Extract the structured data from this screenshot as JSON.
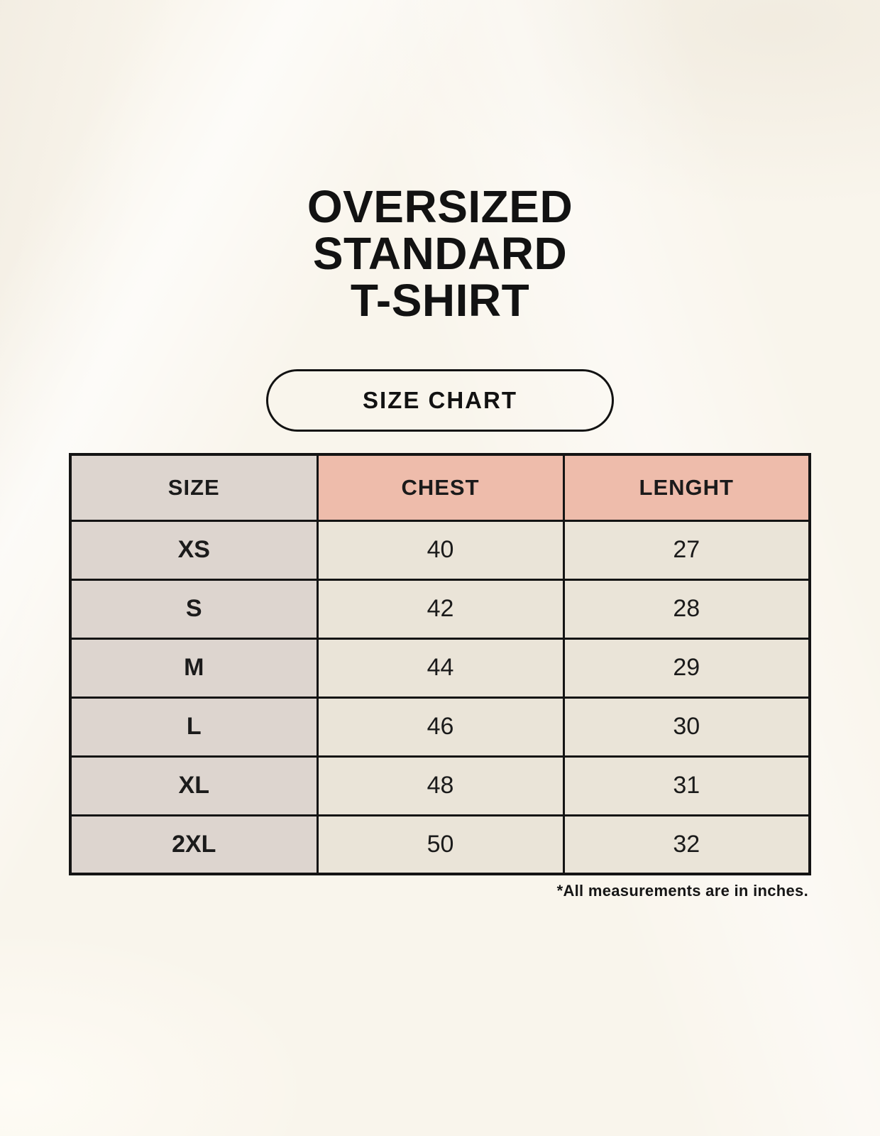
{
  "page": {
    "title_lines": [
      "OVERSIZED",
      "STANDARD",
      "T-SHIRT"
    ],
    "badge_label": "SIZE CHART",
    "footnote": "*All measurements are in inches."
  },
  "chart_data": {
    "type": "table",
    "title": "SIZE CHART",
    "columns": [
      "SIZE",
      "CHEST",
      "LENGHT"
    ],
    "rows": [
      [
        "XS",
        "40",
        "27"
      ],
      [
        "S",
        "42",
        "28"
      ],
      [
        "M",
        "44",
        "29"
      ],
      [
        "L",
        "46",
        "30"
      ],
      [
        "XL",
        "48",
        "31"
      ],
      [
        "2XL",
        "50",
        "32"
      ]
    ],
    "units_note": "*All measurements are in inches."
  },
  "colors": {
    "background": "#f9f5ec",
    "size_column_bg": "#ddd5cf",
    "measure_header_bg": "#eebcab",
    "value_cell_bg": "#eae4d8",
    "border": "#141414",
    "text": "#1b1b1b"
  }
}
